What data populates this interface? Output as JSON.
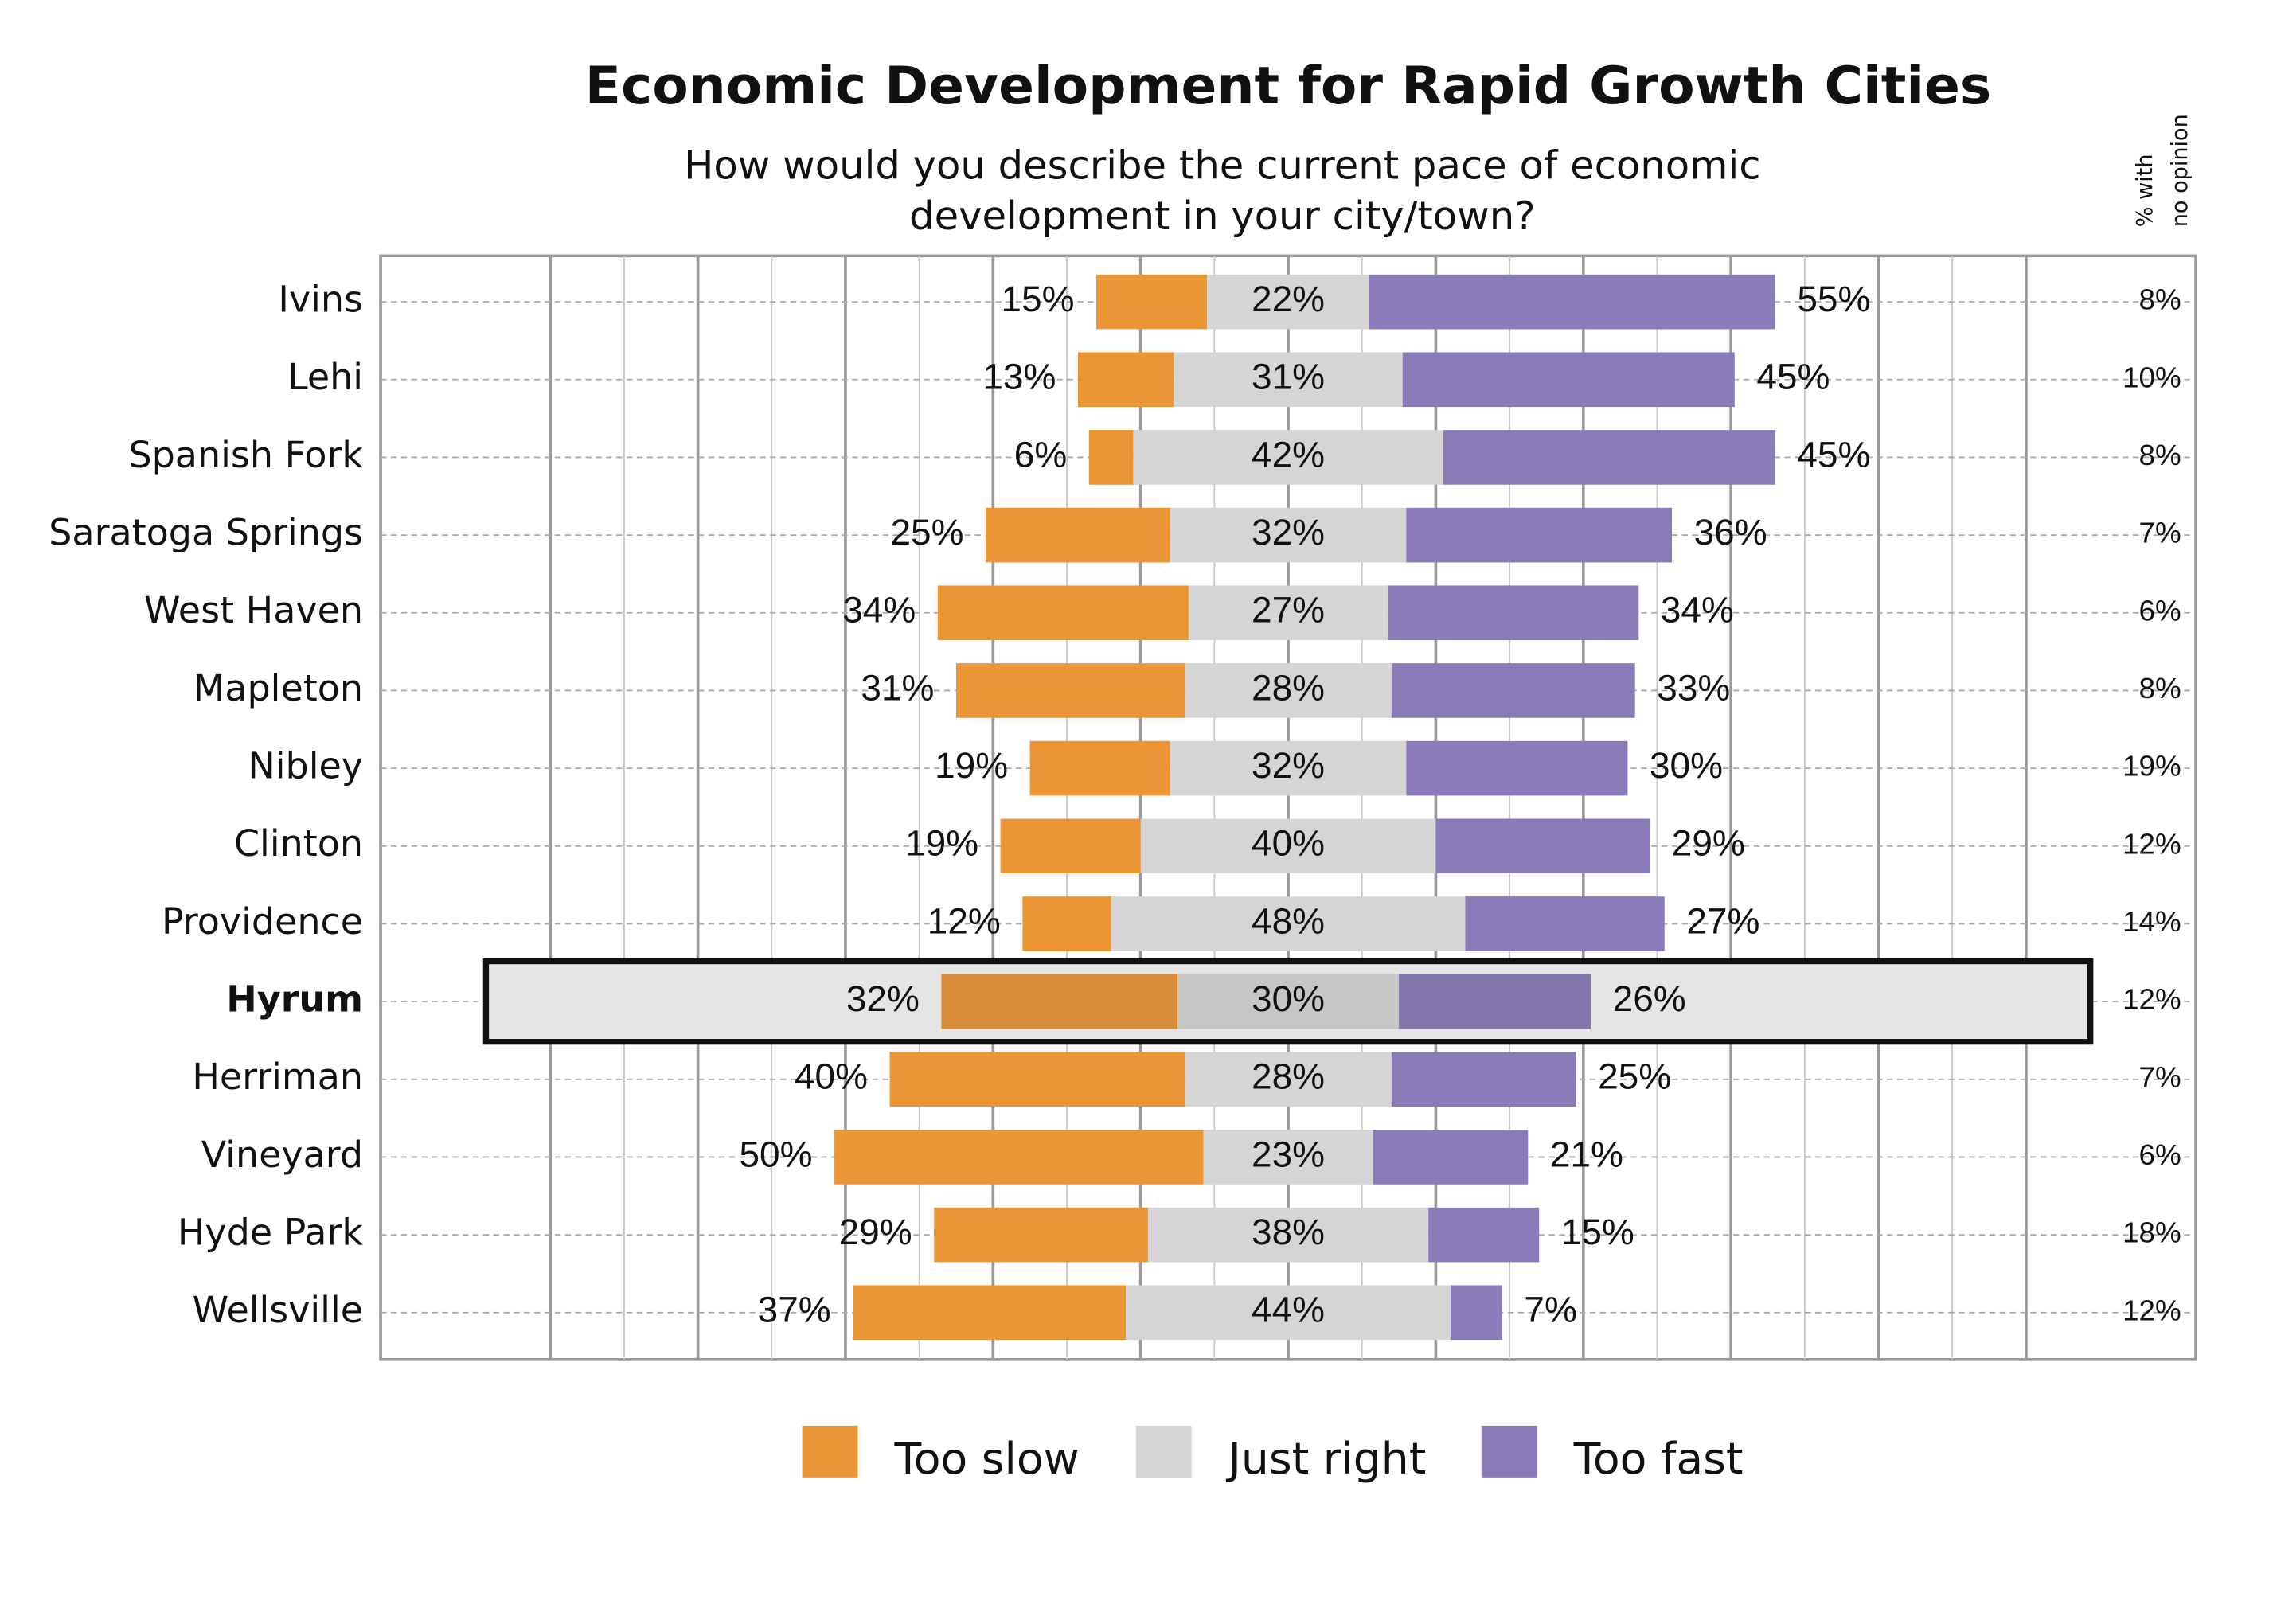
{
  "chart_data": {
    "type": "diverging-bar",
    "title": "Economic Development for Rapid Growth Cities",
    "subtitle": [
      "How would you describe the current pace of economic",
      "development in your city/town?"
    ],
    "categories": [
      "Ivins",
      "Lehi",
      "Spanish Fork",
      "Saratoga Springs",
      "West Haven",
      "Mapleton",
      "Nibley",
      "Clinton",
      "Providence",
      "Hyrum",
      "Herriman",
      "Vineyard",
      "Hyde Park",
      "Wellsville"
    ],
    "highlight": "Hyrum",
    "xlim": [
      -123,
      123
    ],
    "grid": true,
    "series": [
      {
        "name": "Too slow",
        "color": "#ec9535",
        "side": "left",
        "values": [
          15,
          13,
          6,
          25,
          34,
          31,
          19,
          19,
          12,
          32,
          40,
          50,
          29,
          37
        ],
        "value_labels": [
          "15%",
          "13%",
          "6%",
          "25%",
          "34%",
          "31%",
          "19%",
          "19%",
          "12%",
          "32%",
          "40%",
          "50%",
          "29%",
          "37%"
        ]
      },
      {
        "name": "Just right",
        "color": "#d5d5d5",
        "side": "center",
        "values": [
          22,
          31,
          42,
          32,
          27,
          28,
          32,
          40,
          48,
          30,
          28,
          23,
          38,
          44
        ],
        "value_labels": [
          "22%",
          "31%",
          "42%",
          "32%",
          "27%",
          "28%",
          "32%",
          "40%",
          "48%",
          "30%",
          "28%",
          "23%",
          "38%",
          "44%"
        ]
      },
      {
        "name": "Too fast",
        "color": "#8a7bb8",
        "side": "right",
        "values": [
          55,
          45,
          45,
          36,
          34,
          33,
          30,
          29,
          27,
          26,
          25,
          21,
          15,
          7
        ],
        "value_labels": [
          "55%",
          "45%",
          "45%",
          "36%",
          "34%",
          "33%",
          "30%",
          "29%",
          "27%",
          "26%",
          "25%",
          "21%",
          "15%",
          "7%"
        ]
      }
    ],
    "no_opinion": {
      "header": [
        "% with",
        "no opinion"
      ],
      "values": [
        8,
        10,
        8,
        7,
        6,
        8,
        19,
        12,
        14,
        12,
        7,
        6,
        18,
        12
      ],
      "value_labels": [
        "8%",
        "10%",
        "8%",
        "7%",
        "6%",
        "8%",
        "19%",
        "12%",
        "14%",
        "12%",
        "7%",
        "6%",
        "18%",
        "12%"
      ]
    }
  }
}
